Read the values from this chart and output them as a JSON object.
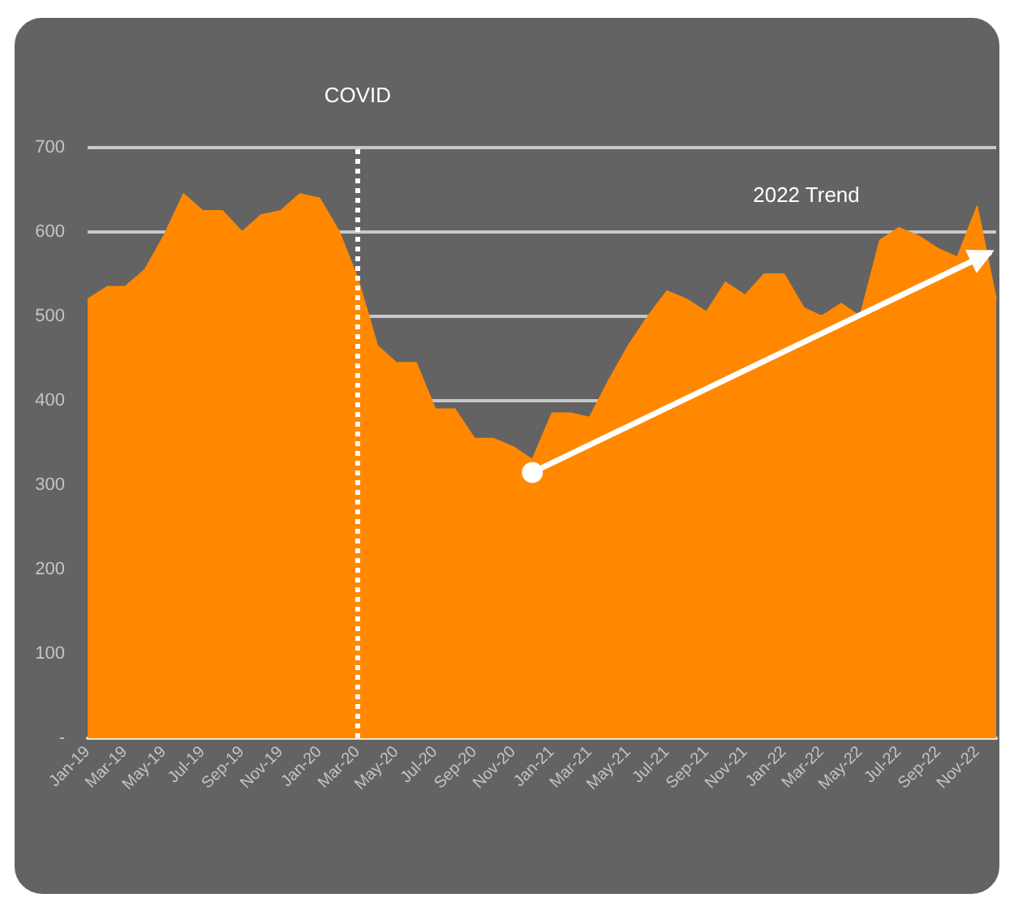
{
  "chart_data": {
    "type": "area",
    "x": [
      "2019-01",
      "2019-02",
      "2019-03",
      "2019-04",
      "2019-05",
      "2019-06",
      "2019-07",
      "2019-08",
      "2019-09",
      "2019-10",
      "2019-11",
      "2019-12",
      "2020-01",
      "2020-02",
      "2020-03",
      "2020-04",
      "2020-05",
      "2020-06",
      "2020-07",
      "2020-08",
      "2020-09",
      "2020-10",
      "2020-11",
      "2020-12",
      "2021-01",
      "2021-02",
      "2021-03",
      "2021-04",
      "2021-05",
      "2021-06",
      "2021-07",
      "2021-08",
      "2021-09",
      "2021-10",
      "2021-11",
      "2021-12",
      "2022-01",
      "2022-02",
      "2022-03",
      "2022-04",
      "2022-05",
      "2022-06",
      "2022-07",
      "2022-08",
      "2022-09",
      "2022-10",
      "2022-11",
      "2022-12"
    ],
    "series": [
      {
        "color": "#ff8800",
        "values": [
          520,
          535,
          535,
          555,
          595,
          645,
          625,
          625,
          600,
          620,
          625,
          645,
          640,
          600,
          545,
          465,
          445,
          445,
          390,
          390,
          355,
          355,
          345,
          330,
          385,
          385,
          380,
          425,
          465,
          500,
          530,
          520,
          505,
          540,
          525,
          550,
          550,
          510,
          500,
          515,
          500,
          590,
          605,
          595,
          580,
          570,
          630,
          520
        ]
      },
      {
        "type": "line",
        "color": "#ffffff",
        "x": [
          "2020-12",
          "2022-11-20"
        ],
        "values": [
          315,
          575
        ],
        "marker": "circle"
      }
    ],
    "xlim": [
      "2019-01",
      "2022-12"
    ],
    "xticks": [
      {
        "value": "2019-01",
        "label": "Jan-19"
      },
      {
        "value": "2019-03",
        "label": "Mar-19"
      },
      {
        "value": "2019-05",
        "label": "May-19"
      },
      {
        "value": "2019-07",
        "label": "Jul-19"
      },
      {
        "value": "2019-09",
        "label": "Sep-19"
      },
      {
        "value": "2019-11",
        "label": "Nov-19"
      },
      {
        "value": "2020-01",
        "label": "Jan-20"
      },
      {
        "value": "2020-03",
        "label": "Mar-20"
      },
      {
        "value": "2020-05",
        "label": "May-20"
      },
      {
        "value": "2020-07",
        "label": "Jul-20"
      },
      {
        "value": "2020-09",
        "label": "Sep-20"
      },
      {
        "value": "2020-11",
        "label": "Nov-20"
      },
      {
        "value": "2021-01",
        "label": "Jan-21"
      },
      {
        "value": "2021-03",
        "label": "Mar-21"
      },
      {
        "value": "2021-05",
        "label": "May-21"
      },
      {
        "value": "2021-07",
        "label": "Jul-21"
      },
      {
        "value": "2021-09",
        "label": "Sep-21"
      },
      {
        "value": "2021-11",
        "label": "Nov-21"
      },
      {
        "value": "2022-01",
        "label": "Jan-22"
      },
      {
        "value": "2022-03",
        "label": "Mar-22"
      },
      {
        "value": "2022-05",
        "label": "May-22"
      },
      {
        "value": "2022-07",
        "label": "Jul-22"
      },
      {
        "value": "2022-09",
        "label": "Sep-22"
      },
      {
        "value": "2022-11",
        "label": "Nov-22"
      }
    ],
    "ylim": [
      0,
      700
    ],
    "yticks": [
      {
        "value": 0,
        "label": "-"
      },
      100,
      200,
      300,
      400,
      500,
      600,
      700
    ],
    "grid": "y",
    "ref_lines": [
      {
        "axis": "x",
        "value": "2020-03",
        "label": "COVID",
        "color": "#ffffff",
        "line_style": "dotted"
      }
    ],
    "annotations": [
      "2022 Trend"
    ]
  }
}
